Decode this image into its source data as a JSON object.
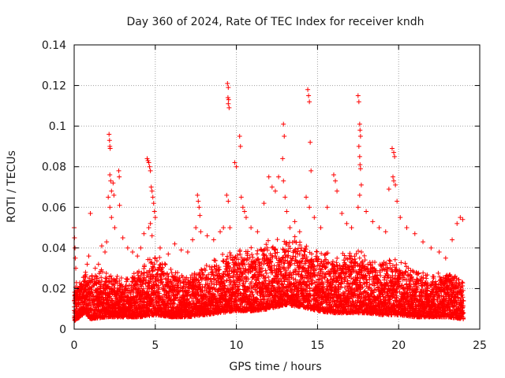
{
  "chart_data": {
    "type": "scatter",
    "title": "Day 360 of 2024, Rate Of TEC Index for receiver kndh",
    "xlabel": "GPS time / hours",
    "ylabel": "ROTI / TECUs",
    "xlim": [
      0,
      25
    ],
    "ylim": [
      0,
      0.14
    ],
    "xticks": [
      0,
      5,
      10,
      15,
      20,
      25
    ],
    "xtick_labels": [
      "0",
      "5",
      "10",
      "15",
      "20",
      "25"
    ],
    "yticks": [
      0,
      0.02,
      0.04,
      0.06,
      0.08,
      0.1,
      0.12,
      0.14
    ],
    "ytick_labels": [
      "0",
      "0.02",
      "0.04",
      "0.06",
      "0.08",
      "0.1",
      "0.12",
      "0.14"
    ],
    "grid": true,
    "marker": "+",
    "color": "#ff0000",
    "series": [
      {
        "name": "ROTI",
        "points": [
          [
            0.0,
            0.05
          ],
          [
            0.02,
            0.045
          ],
          [
            0.05,
            0.04
          ],
          [
            0.07,
            0.035
          ],
          [
            0.1,
            0.03
          ],
          [
            0.05,
            0.017
          ],
          [
            0.1,
            0.017
          ],
          [
            0.03,
            0.008
          ],
          [
            0.08,
            0.006
          ],
          [
            0.12,
            0.01
          ],
          [
            0.7,
            0.028
          ],
          [
            0.8,
            0.032
          ],
          [
            0.9,
            0.036
          ],
          [
            1.0,
            0.057
          ],
          [
            1.1,
            0.026
          ],
          [
            1.3,
            0.03
          ],
          [
            1.5,
            0.032
          ],
          [
            1.7,
            0.041
          ],
          [
            1.9,
            0.038
          ],
          [
            2.0,
            0.043
          ],
          [
            2.15,
            0.096
          ],
          [
            2.18,
            0.093
          ],
          [
            2.2,
            0.09
          ],
          [
            2.22,
            0.089
          ],
          [
            2.2,
            0.076
          ],
          [
            2.25,
            0.073
          ],
          [
            2.3,
            0.068
          ],
          [
            2.4,
            0.072
          ],
          [
            2.45,
            0.066
          ],
          [
            2.1,
            0.065
          ],
          [
            2.2,
            0.06
          ],
          [
            2.3,
            0.055
          ],
          [
            2.5,
            0.05
          ],
          [
            2.75,
            0.078
          ],
          [
            2.78,
            0.075
          ],
          [
            2.8,
            0.061
          ],
          [
            3.0,
            0.045
          ],
          [
            3.3,
            0.04
          ],
          [
            3.6,
            0.038
          ],
          [
            3.9,
            0.036
          ],
          [
            4.1,
            0.04
          ],
          [
            4.3,
            0.047
          ],
          [
            4.5,
            0.084
          ],
          [
            4.55,
            0.083
          ],
          [
            4.6,
            0.082
          ],
          [
            4.65,
            0.08
          ],
          [
            4.7,
            0.078
          ],
          [
            4.75,
            0.07
          ],
          [
            4.8,
            0.068
          ],
          [
            4.85,
            0.065
          ],
          [
            4.9,
            0.062
          ],
          [
            4.95,
            0.058
          ],
          [
            5.0,
            0.055
          ],
          [
            4.7,
            0.052
          ],
          [
            4.6,
            0.05
          ],
          [
            4.8,
            0.046
          ],
          [
            5.3,
            0.04
          ],
          [
            5.8,
            0.037
          ],
          [
            6.2,
            0.042
          ],
          [
            6.6,
            0.039
          ],
          [
            7.0,
            0.038
          ],
          [
            7.3,
            0.044
          ],
          [
            7.6,
            0.066
          ],
          [
            7.65,
            0.063
          ],
          [
            7.7,
            0.06
          ],
          [
            7.75,
            0.056
          ],
          [
            7.5,
            0.05
          ],
          [
            7.8,
            0.048
          ],
          [
            8.2,
            0.046
          ],
          [
            8.6,
            0.044
          ],
          [
            9.0,
            0.048
          ],
          [
            9.2,
            0.05
          ],
          [
            9.45,
            0.121
          ],
          [
            9.5,
            0.119
          ],
          [
            9.48,
            0.114
          ],
          [
            9.52,
            0.113
          ],
          [
            9.5,
            0.111
          ],
          [
            9.55,
            0.109
          ],
          [
            9.4,
            0.066
          ],
          [
            9.5,
            0.063
          ],
          [
            9.6,
            0.05
          ],
          [
            9.9,
            0.082
          ],
          [
            10.0,
            0.08
          ],
          [
            10.2,
            0.095
          ],
          [
            10.25,
            0.09
          ],
          [
            10.3,
            0.065
          ],
          [
            10.4,
            0.06
          ],
          [
            10.5,
            0.058
          ],
          [
            10.6,
            0.055
          ],
          [
            10.9,
            0.05
          ],
          [
            11.3,
            0.048
          ],
          [
            11.7,
            0.062
          ],
          [
            12.0,
            0.075
          ],
          [
            12.2,
            0.07
          ],
          [
            12.4,
            0.068
          ],
          [
            12.6,
            0.075
          ],
          [
            12.9,
            0.101
          ],
          [
            12.95,
            0.095
          ],
          [
            12.85,
            0.084
          ],
          [
            12.9,
            0.073
          ],
          [
            13.0,
            0.065
          ],
          [
            13.1,
            0.058
          ],
          [
            13.3,
            0.05
          ],
          [
            13.6,
            0.053
          ],
          [
            13.9,
            0.048
          ],
          [
            14.4,
            0.118
          ],
          [
            14.45,
            0.115
          ],
          [
            14.5,
            0.112
          ],
          [
            14.55,
            0.092
          ],
          [
            14.6,
            0.078
          ],
          [
            14.3,
            0.065
          ],
          [
            14.5,
            0.06
          ],
          [
            14.8,
            0.055
          ],
          [
            15.2,
            0.05
          ],
          [
            15.6,
            0.06
          ],
          [
            16.0,
            0.076
          ],
          [
            16.1,
            0.073
          ],
          [
            16.2,
            0.068
          ],
          [
            16.5,
            0.057
          ],
          [
            16.8,
            0.052
          ],
          [
            17.1,
            0.05
          ],
          [
            17.5,
            0.115
          ],
          [
            17.55,
            0.112
          ],
          [
            17.6,
            0.101
          ],
          [
            17.62,
            0.098
          ],
          [
            17.65,
            0.095
          ],
          [
            17.55,
            0.09
          ],
          [
            17.6,
            0.085
          ],
          [
            17.62,
            0.081
          ],
          [
            17.65,
            0.079
          ],
          [
            17.7,
            0.071
          ],
          [
            17.6,
            0.066
          ],
          [
            17.5,
            0.06
          ],
          [
            18.0,
            0.058
          ],
          [
            18.4,
            0.053
          ],
          [
            18.8,
            0.05
          ],
          [
            19.2,
            0.048
          ],
          [
            19.6,
            0.089
          ],
          [
            19.7,
            0.087
          ],
          [
            19.75,
            0.085
          ],
          [
            19.65,
            0.075
          ],
          [
            19.7,
            0.073
          ],
          [
            19.8,
            0.071
          ],
          [
            19.4,
            0.069
          ],
          [
            19.9,
            0.063
          ],
          [
            20.1,
            0.055
          ],
          [
            20.5,
            0.05
          ],
          [
            21.0,
            0.047
          ],
          [
            21.5,
            0.043
          ],
          [
            22.0,
            0.04
          ],
          [
            22.5,
            0.038
          ],
          [
            22.9,
            0.035
          ],
          [
            23.3,
            0.044
          ],
          [
            23.6,
            0.052
          ],
          [
            23.8,
            0.055
          ],
          [
            23.95,
            0.054
          ]
        ],
        "band": [
          [
            0,
            0.004,
            0.018
          ],
          [
            0.7,
            0.008,
            0.024
          ],
          [
            1.0,
            0.005,
            0.022
          ],
          [
            2.0,
            0.006,
            0.025
          ],
          [
            3.0,
            0.006,
            0.02
          ],
          [
            4.0,
            0.006,
            0.025
          ],
          [
            5.0,
            0.007,
            0.03
          ],
          [
            6.0,
            0.006,
            0.024
          ],
          [
            7.0,
            0.006,
            0.022
          ],
          [
            8.0,
            0.007,
            0.026
          ],
          [
            9.0,
            0.008,
            0.03
          ],
          [
            10.0,
            0.009,
            0.032
          ],
          [
            11.0,
            0.009,
            0.033
          ],
          [
            12.0,
            0.01,
            0.036
          ],
          [
            13.0,
            0.012,
            0.038
          ],
          [
            14.0,
            0.011,
            0.036
          ],
          [
            15.0,
            0.009,
            0.032
          ],
          [
            16.0,
            0.008,
            0.03
          ],
          [
            17.0,
            0.008,
            0.032
          ],
          [
            18.0,
            0.008,
            0.03
          ],
          [
            19.0,
            0.007,
            0.028
          ],
          [
            20.0,
            0.007,
            0.028
          ],
          [
            21.0,
            0.006,
            0.025
          ],
          [
            22.0,
            0.006,
            0.022
          ],
          [
            23.0,
            0.006,
            0.024
          ],
          [
            24.0,
            0.005,
            0.02
          ]
        ]
      }
    ]
  }
}
